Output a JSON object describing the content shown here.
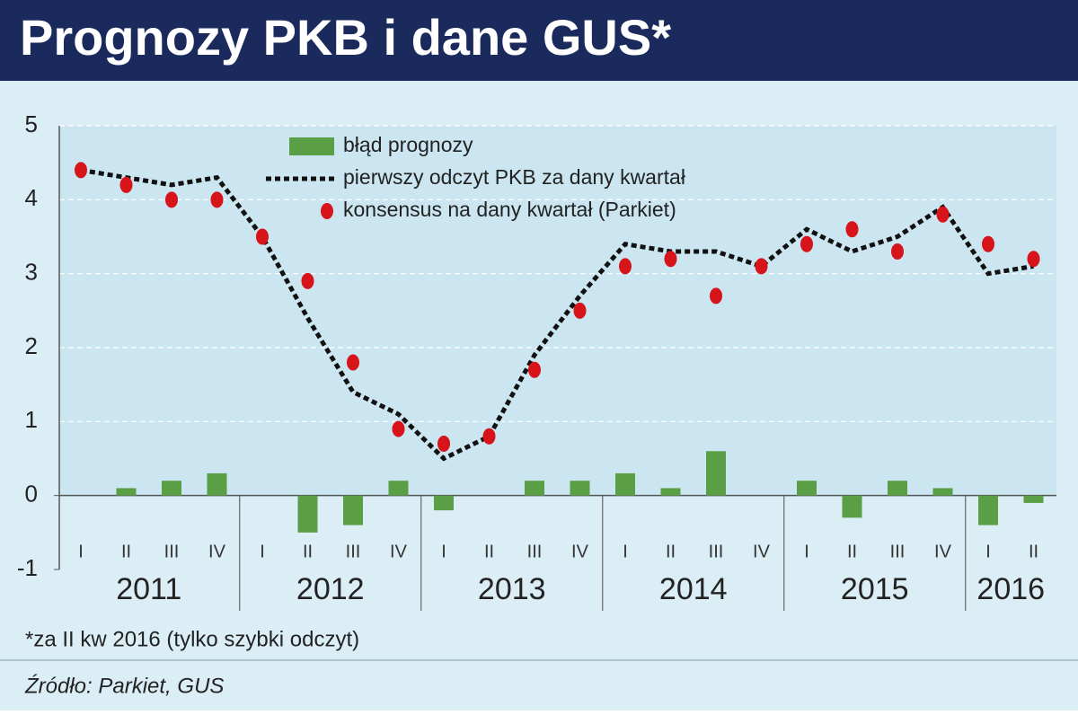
{
  "chart_data": {
    "type": "bar_line_scatter",
    "title": "Prognozy PKB i dane GUS*",
    "categories": [
      "I",
      "II",
      "III",
      "IV",
      "I",
      "II",
      "III",
      "IV",
      "I",
      "II",
      "III",
      "IV",
      "I",
      "II",
      "III",
      "IV",
      "I",
      "II",
      "III",
      "IV",
      "I",
      "II"
    ],
    "year_labels": [
      "2011",
      "2012",
      "2013",
      "2014",
      "2015",
      "2016"
    ],
    "series": [
      {
        "name": "błąd prognozy",
        "color": "#5a9e45",
        "kind": "bar",
        "values": [
          0,
          0.1,
          0.2,
          0.3,
          0,
          -0.5,
          -0.4,
          0.2,
          -0.2,
          0,
          0.2,
          0.2,
          0.3,
          0.1,
          0.6,
          0,
          0.2,
          -0.3,
          0.2,
          0.1,
          -0.4,
          -0.1
        ]
      },
      {
        "name": "pierwszy odczyt PKB za dany kwartał",
        "color": "#111111",
        "kind": "line",
        "values": [
          4.4,
          4.3,
          4.2,
          4.3,
          3.5,
          2.4,
          1.4,
          1.1,
          0.5,
          0.8,
          1.9,
          2.7,
          3.4,
          3.3,
          3.3,
          3.1,
          3.6,
          3.3,
          3.5,
          3.9,
          3.0,
          3.1
        ]
      },
      {
        "name": "konsensus na dany kwartał (Parkiet)",
        "color": "#d7141a",
        "kind": "dot",
        "values": [
          4.4,
          4.2,
          4.0,
          4.0,
          3.5,
          2.9,
          1.8,
          0.9,
          0.7,
          0.8,
          1.7,
          2.5,
          3.1,
          3.2,
          2.7,
          3.1,
          3.4,
          3.6,
          3.3,
          3.8,
          3.4,
          3.2
        ]
      }
    ],
    "ylim": [
      -1,
      5
    ],
    "yticks": [
      -1,
      0,
      1,
      2,
      3,
      4,
      5
    ],
    "grid": true,
    "footnote": "*za II kw 2016 (tylko szybki odczyt)",
    "source": "Źródło: Parkiet, GUS"
  }
}
